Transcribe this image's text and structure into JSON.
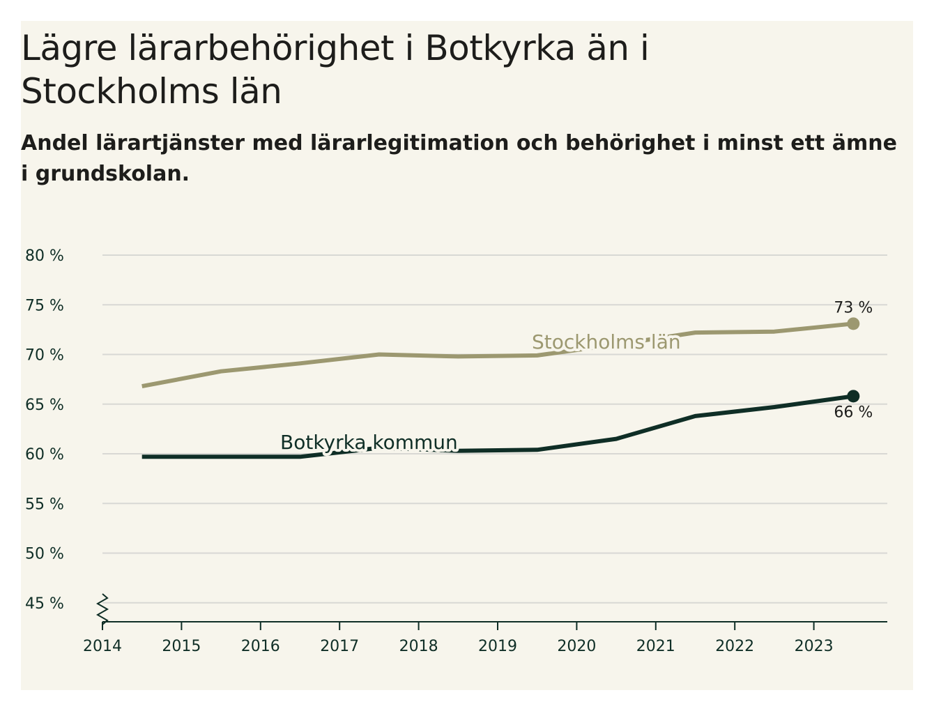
{
  "title": "Lägre lärarbehörighet i Botkyrka än i Stockholms län",
  "subtitle": "Andel lärartjänster med lärarlegitimation och behörighet i minst ett ämne i grundskolan.",
  "chart_data": {
    "type": "line",
    "title": "Lägre lärarbehörighet i Botkyrka än i Stockholms län",
    "subtitle": "Andel lärartjänster med lärarlegitimation och behörighet i minst ett ämne i grundskolan.",
    "xlabel": "",
    "ylabel": "",
    "x_ticks": [
      "2014",
      "2015",
      "2016",
      "2017",
      "2018",
      "2019",
      "2020",
      "2021",
      "2022",
      "2023"
    ],
    "y_ticks": [
      {
        "value": 80,
        "label": "80 %"
      },
      {
        "value": 75,
        "label": "75 %"
      },
      {
        "value": 70,
        "label": "70 %"
      },
      {
        "value": 65,
        "label": "65 %"
      },
      {
        "value": 60,
        "label": "60 %"
      },
      {
        "value": 55,
        "label": "55 %"
      },
      {
        "value": 50,
        "label": "50 %"
      },
      {
        "value": 45,
        "label": "45 %"
      }
    ],
    "xlim": [
      2014,
      2024
    ],
    "ylim": [
      43.2,
      80
    ],
    "axis_break": true,
    "grid": true,
    "series": [
      {
        "name": "Stockholms län",
        "color": "#9c9870",
        "x": [
          2014.5,
          2015.5,
          2016.5,
          2017.5,
          2018.5,
          2019.5,
          2020.5,
          2021.5,
          2022.5,
          2023.5
        ],
        "y": [
          66.8,
          68.3,
          69.1,
          70.0,
          69.8,
          69.9,
          71.0,
          72.2,
          72.3,
          73.1
        ],
        "end_label": "73 %"
      },
      {
        "name": "Botkyrka kommun",
        "color": "#0f2e26",
        "x": [
          2014.5,
          2015.5,
          2016.5,
          2017.5,
          2018.5,
          2019.5,
          2020.5,
          2021.5,
          2022.5,
          2023.5
        ],
        "y": [
          59.7,
          59.7,
          59.7,
          60.6,
          60.3,
          60.4,
          61.5,
          63.8,
          64.7,
          65.8
        ],
        "end_label": "66 %"
      }
    ]
  }
}
